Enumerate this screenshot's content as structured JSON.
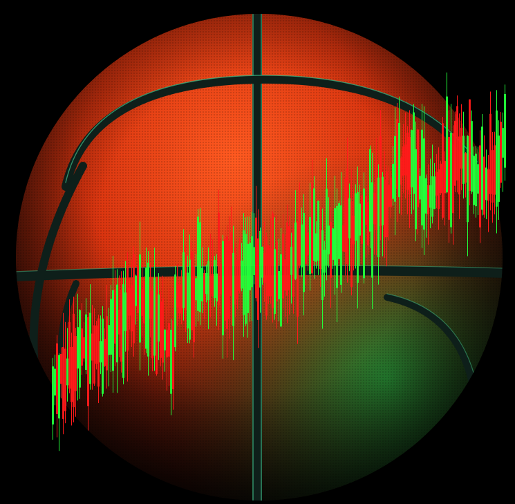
{
  "image": {
    "subject": "basketball-with-candlestick-chart",
    "colors": {
      "background": "#000000",
      "ball_orange": "#e8431a",
      "ball_dark": "#2a0d08",
      "seam": "#0e1f1a",
      "seam_highlight": "#3fbf8a",
      "candle_up": "#22ff3a",
      "candle_down": "#ff1a1a"
    }
  }
}
